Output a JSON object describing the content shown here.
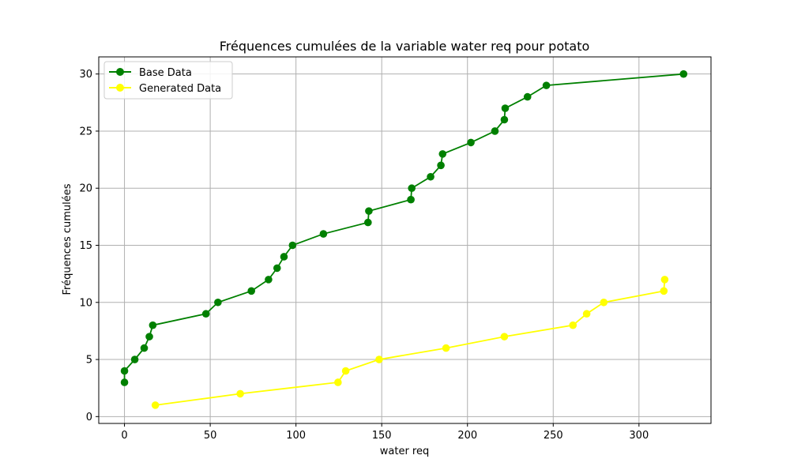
{
  "chart_data": {
    "type": "line",
    "title": "Fréquences cumulées de la variable water req pour potato",
    "xlabel": "water req",
    "ylabel": "Fréquences cumulées",
    "xlim": [
      -15,
      342
    ],
    "ylim": [
      -0.6,
      31.5
    ],
    "xticks": [
      0,
      50,
      100,
      150,
      200,
      250,
      300
    ],
    "yticks": [
      0,
      5,
      10,
      15,
      20,
      25,
      30
    ],
    "grid": true,
    "legend_position": "top-left",
    "series": [
      {
        "name": "Base Data",
        "color": "#008000",
        "points": [
          [
            0,
            3
          ],
          [
            0,
            4
          ],
          [
            6,
            5
          ],
          [
            11.5,
            6
          ],
          [
            14.5,
            7
          ],
          [
            16.5,
            8
          ],
          [
            47.5,
            9
          ],
          [
            54.5,
            10
          ],
          [
            74,
            11
          ],
          [
            84,
            12
          ],
          [
            89,
            13
          ],
          [
            93,
            14
          ],
          [
            98,
            15
          ],
          [
            116,
            16
          ],
          [
            142,
            17
          ],
          [
            142.5,
            18
          ],
          [
            167,
            19
          ],
          [
            167.5,
            20
          ],
          [
            178.5,
            21
          ],
          [
            184.5,
            22
          ],
          [
            185.5,
            23
          ],
          [
            202,
            24
          ],
          [
            216,
            25
          ],
          [
            221.5,
            26
          ],
          [
            222,
            27
          ],
          [
            235,
            28
          ],
          [
            246,
            29
          ],
          [
            326,
            30
          ]
        ]
      },
      {
        "name": "Generated Data",
        "color": "#ffff00",
        "points": [
          [
            18,
            1
          ],
          [
            67.5,
            2
          ],
          [
            124.5,
            3
          ],
          [
            129,
            4
          ],
          [
            148.5,
            5
          ],
          [
            187.5,
            6
          ],
          [
            221.5,
            7
          ],
          [
            261.5,
            8
          ],
          [
            269.5,
            9
          ],
          [
            279.5,
            10
          ],
          [
            314.5,
            11
          ],
          [
            315,
            12
          ]
        ]
      }
    ]
  }
}
